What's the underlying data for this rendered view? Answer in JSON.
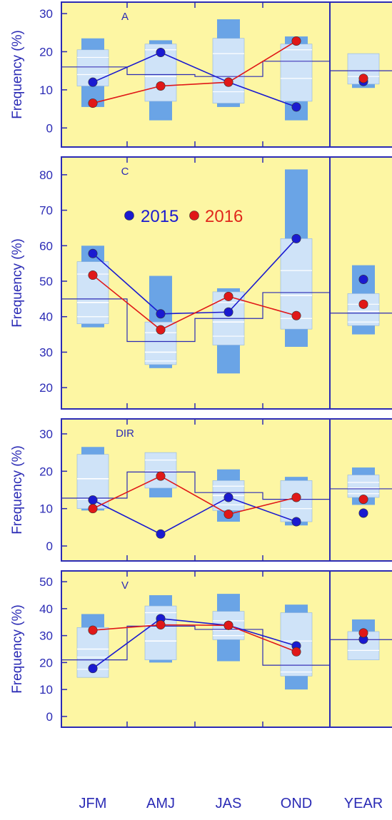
{
  "colors": {
    "panel_bg": "#fdf6a3",
    "axis": "#2b2bb5",
    "box_dark": "#6aa4e6",
    "box_light": "#cfe3f8",
    "series_2015": "#1a1ad0",
    "series_2016": "#e01818",
    "legend_2016_text": "#e0281c"
  },
  "chart_data": {
    "type": "box-range",
    "x_categories": [
      "JFM",
      "AMJ",
      "JAS",
      "OND",
      "YEAR"
    ],
    "legend": [
      {
        "label": "2015",
        "color": "#1a1ad0"
      },
      {
        "label": "2016",
        "color": "#e01818"
      }
    ],
    "panels": [
      {
        "label": "A",
        "ylabel": "Frequency (%)",
        "ylim": [
          -5,
          33
        ],
        "yticks": [
          0,
          10,
          20,
          30
        ],
        "boxes": [
          {
            "outer": [
              5.5,
              23.5
            ],
            "inner": [
              11,
              20.5
            ],
            "median": 16,
            "lines": [
              14,
              18.5
            ]
          },
          {
            "outer": [
              2,
              23
            ],
            "inner": [
              7,
              22
            ],
            "median": 13.5,
            "lines": [
              20.5
            ]
          },
          {
            "outer": [
              5.5,
              28.5
            ],
            "inner": [
              6.5,
              23.5
            ],
            "median": 13.5,
            "lines": [
              9.5,
              19.5
            ]
          },
          {
            "outer": [
              2,
              24
            ],
            "inner": [
              7,
              22
            ],
            "median": 17.5,
            "lines": [
              13,
              20.5
            ]
          },
          {
            "outer": [
              10.5,
              19.5
            ],
            "inner": [
              11.5,
              19.5
            ],
            "median": 15,
            "lines": [
              13.5
            ]
          }
        ],
        "step": [
          16,
          14,
          13.5,
          17.5
        ],
        "annual": 15,
        "series_2015": [
          12,
          19.8,
          12,
          5.5,
          12.2
        ],
        "series_2016": [
          6.5,
          11,
          12,
          22.8,
          13
        ]
      },
      {
        "label": "C",
        "ylabel": "Frequency (%)",
        "ylim": [
          14,
          85
        ],
        "yticks": [
          20,
          30,
          40,
          50,
          60,
          70,
          80
        ],
        "boxes": [
          {
            "outer": [
              37,
              60
            ],
            "inner": [
              38,
              55.5
            ],
            "median": 44,
            "lines": [
              40,
              52
            ]
          },
          {
            "outer": [
              25.5,
              51.5
            ],
            "inner": [
              26.5,
              38.5
            ],
            "median": 30,
            "lines": [
              27.5,
              35.5
            ]
          },
          {
            "outer": [
              24,
              48
            ],
            "inner": [
              32,
              47
            ],
            "median": 38.5,
            "lines": [
              34.5,
              44
            ]
          },
          {
            "outer": [
              31.5,
              81.5
            ],
            "inner": [
              36.5,
              62
            ],
            "median": 46,
            "lines": [
              39.5,
              53
            ]
          },
          {
            "outer": [
              35,
              54.5
            ],
            "inner": [
              37.5,
              46.5
            ],
            "median": 41.5,
            "lines": [
              38.5,
              43.5
            ]
          }
        ],
        "step": [
          45,
          33,
          39.5,
          46.8
        ],
        "annual": 41,
        "series_2015": [
          57.8,
          40.8,
          41.3,
          62,
          50.5
        ],
        "series_2016": [
          51.7,
          36.3,
          45.7,
          40.3,
          43.5
        ]
      },
      {
        "label": "DIR",
        "ylabel": "Frequency (%)",
        "ylim": [
          -4,
          34
        ],
        "yticks": [
          0,
          10,
          20,
          30
        ],
        "boxes": [
          {
            "outer": [
              9.5,
              26.5
            ],
            "inner": [
              10,
              24.5
            ],
            "median": 18,
            "lines": [
              12.5
            ]
          },
          {
            "outer": [
              13,
              25
            ],
            "inner": [
              15.5,
              25
            ],
            "median": 20,
            "lines": [
              23
            ]
          },
          {
            "outer": [
              6.5,
              20.5
            ],
            "inner": [
              9.5,
              17.5
            ],
            "median": 13.5,
            "lines": [
              11,
              16
            ]
          },
          {
            "outer": [
              5.5,
              18.5
            ],
            "inner": [
              6.5,
              17.5
            ],
            "median": 12.5,
            "lines": [
              10
            ]
          },
          {
            "outer": [
              11,
              21
            ],
            "inner": [
              13,
              19
            ],
            "median": 15.5,
            "lines": [
              14,
              17
            ]
          }
        ],
        "step": [
          12.8,
          19.8,
          14.3,
          12.5
        ],
        "annual": 15.3,
        "series_2015": [
          12.3,
          3.2,
          13,
          6.5,
          8.8
        ],
        "series_2016": [
          10,
          18.7,
          8.5,
          13,
          12.5
        ]
      },
      {
        "label": "V",
        "ylabel": "Frequency (%)",
        "ylim": [
          -4,
          54
        ],
        "yticks": [
          0,
          10,
          20,
          30,
          40,
          50
        ],
        "boxes": [
          {
            "outer": [
              14.5,
              38
            ],
            "inner": [
              14.5,
              33
            ],
            "median": 25,
            "lines": [
              17.5,
              22
            ]
          },
          {
            "outer": [
              20,
              45
            ],
            "inner": [
              21,
              41
            ],
            "median": 28,
            "lines": [
              34,
              38.5
            ]
          },
          {
            "outer": [
              20.5,
              45.5
            ],
            "inner": [
              28.5,
              39
            ],
            "median": 32,
            "lines": [
              30,
              35.5
            ]
          },
          {
            "outer": [
              10,
              41.5
            ],
            "inner": [
              15,
              38.5
            ],
            "median": 19,
            "lines": [
              16.5,
              28
            ]
          },
          {
            "outer": [
              21,
              36
            ],
            "inner": [
              21,
              31.5
            ],
            "median": 28.5,
            "lines": [
              24.5
            ]
          }
        ],
        "step": [
          21,
          33.5,
          32.3,
          19
        ],
        "annual": 28.5,
        "series_2015": [
          17.8,
          36.3,
          33.8,
          26.2,
          28.6
        ],
        "series_2016": [
          32,
          34,
          33.8,
          24,
          31
        ]
      }
    ]
  }
}
